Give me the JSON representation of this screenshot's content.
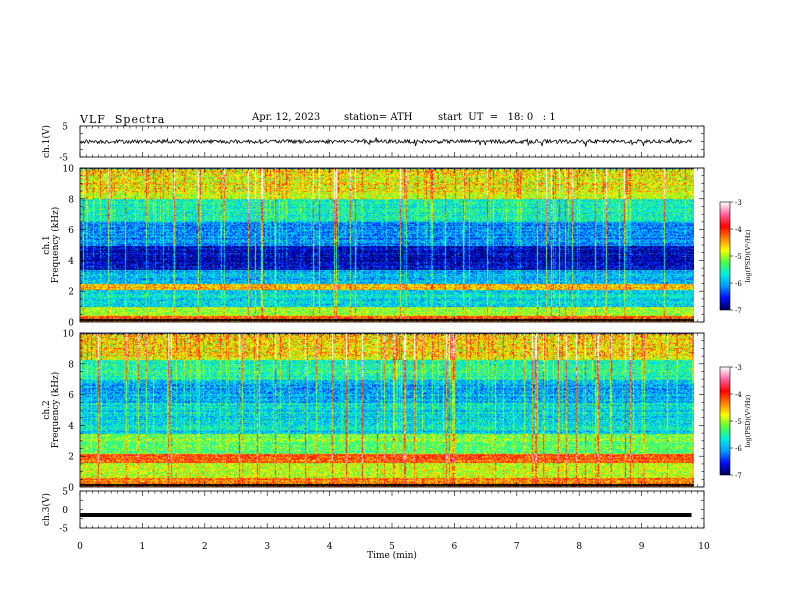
{
  "header": {
    "title": "VLF  Spectra",
    "date": "Apr. 12, 2023",
    "station": "station= ATH",
    "start": "start  UT  =   18: 0   : 1"
  },
  "colors": {
    "spectrogram": [
      "#000060",
      "#0010ff",
      "#00a0ff",
      "#00f0e0",
      "#50ff40",
      "#ffff00",
      "#ff8000",
      "#ff0000",
      "#ff60a0",
      "#ffffff"
    ]
  },
  "chart_data": [
    {
      "type": "line",
      "name": "ch1-waveform",
      "ylabel": "ch.1(V)",
      "ylim": [
        -5,
        5
      ],
      "ytick_labels": [
        "5",
        "-5"
      ],
      "xlim": [
        0,
        10
      ],
      "series": [
        {
          "values_summary": "noisy waveform centred near 0 V, amplitude about ±1 V",
          "mean": 0.0,
          "amplitude": 1.0
        }
      ]
    },
    {
      "type": "heatmap",
      "name": "ch1-spectrogram",
      "ylabel": "ch.1\nFrequency  (kHz)",
      "ylim": [
        0,
        10
      ],
      "ytick_labels": [
        "0",
        "2",
        "4",
        "6",
        "8",
        "10"
      ],
      "xlim": [
        0,
        9.8
      ],
      "colorbar": {
        "label": "log(PSD)(V²/Hz)",
        "range": [
          -7,
          -3
        ],
        "tick_labels": [
          "-3",
          "-4",
          "-5",
          "-6",
          "-7"
        ]
      },
      "bands": [
        {
          "from": 0.0,
          "to": 0.4,
          "level": -4.2
        },
        {
          "from": 0.4,
          "to": 1.0,
          "level": -5.0
        },
        {
          "from": 1.0,
          "to": 2.1,
          "level": -5.8
        },
        {
          "from": 2.1,
          "to": 2.5,
          "level": -4.6
        },
        {
          "from": 2.5,
          "to": 3.4,
          "level": -6.0
        },
        {
          "from": 3.4,
          "to": 5.0,
          "level": -6.8
        },
        {
          "from": 5.0,
          "to": 6.5,
          "level": -6.2
        },
        {
          "from": 6.5,
          "to": 8.0,
          "level": -5.6
        },
        {
          "from": 8.0,
          "to": 10.0,
          "level": -4.9
        }
      ]
    },
    {
      "type": "heatmap",
      "name": "ch2-spectrogram",
      "ylabel": "ch.2\nFrequency  (kHz)",
      "ylim": [
        0,
        10
      ],
      "ytick_labels": [
        "0",
        "2",
        "4",
        "6",
        "8",
        "10"
      ],
      "xlim": [
        0,
        9.8
      ],
      "colorbar": {
        "label": "log(PSD)(V²/Hz)",
        "range": [
          -7,
          -3
        ],
        "tick_labels": [
          "-3",
          "-4",
          "-5",
          "-6",
          "-7"
        ]
      },
      "bands": [
        {
          "from": 0.0,
          "to": 0.6,
          "level": -4.4
        },
        {
          "from": 0.6,
          "to": 1.6,
          "level": -5.0
        },
        {
          "from": 1.6,
          "to": 2.2,
          "level": -4.3
        },
        {
          "from": 2.2,
          "to": 3.5,
          "level": -5.3
        },
        {
          "from": 3.5,
          "to": 5.5,
          "level": -5.9
        },
        {
          "from": 5.5,
          "to": 7.0,
          "level": -6.1
        },
        {
          "from": 7.0,
          "to": 8.3,
          "level": -5.6
        },
        {
          "from": 8.3,
          "to": 10.0,
          "level": -4.9
        }
      ]
    },
    {
      "type": "line",
      "name": "ch3-waveform",
      "ylabel": "ch.3(V)",
      "ylim": [
        -5,
        5
      ],
      "ytick_labels": [
        "5",
        "0",
        "-5"
      ],
      "xlim": [
        0,
        10
      ],
      "xlabel": "Time  (min)",
      "xtick_labels": [
        "0",
        "1",
        "2",
        "3",
        "4",
        "5",
        "6",
        "7",
        "8",
        "9",
        "10"
      ],
      "series": [
        {
          "values_summary": "flat thick trace near -1.5 V",
          "mean": -1.5,
          "amplitude": 0.3
        }
      ]
    }
  ]
}
